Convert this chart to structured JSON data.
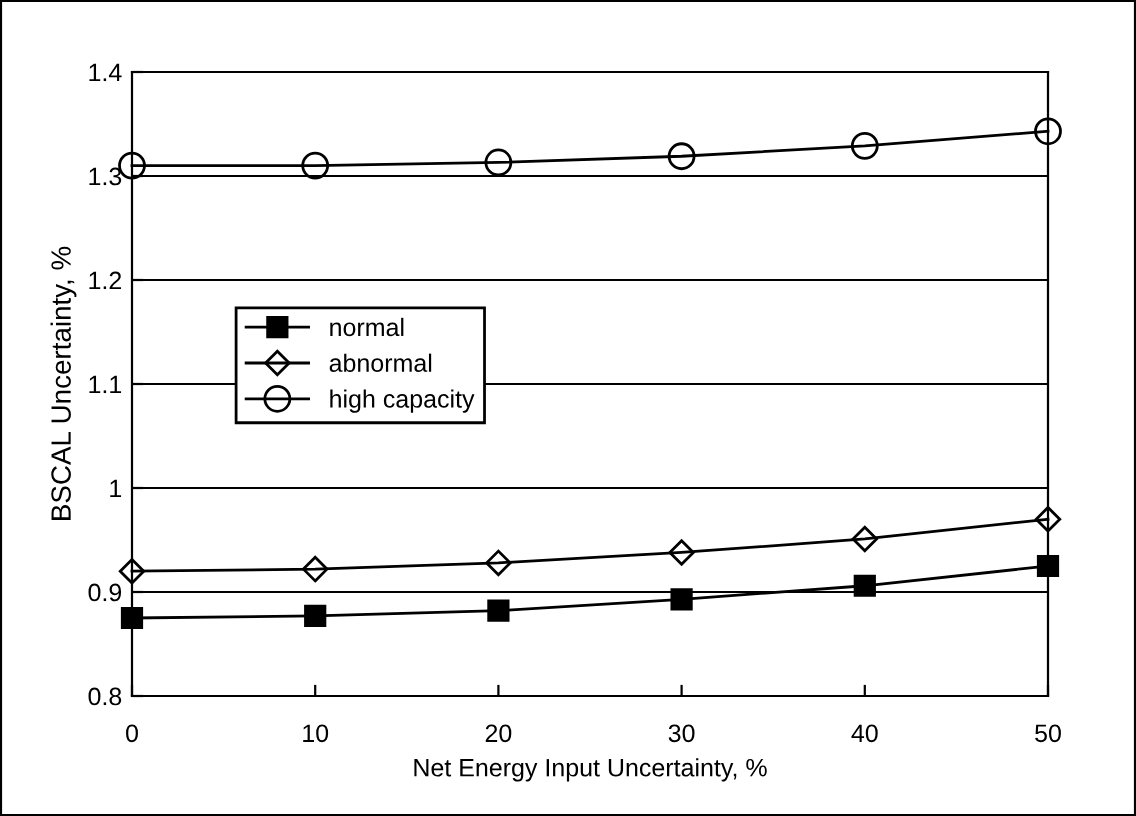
{
  "chart_data": {
    "type": "line",
    "xlabel": "Net Energy Input Uncertainty, %",
    "ylabel": "BSCAL Uncertainty, %",
    "x": [
      0,
      10,
      20,
      30,
      40,
      50
    ],
    "series": [
      {
        "name": "normal",
        "color": "#000000",
        "marker": "square",
        "values": [
          0.875,
          0.877,
          0.882,
          0.893,
          0.906,
          0.925
        ]
      },
      {
        "name": "abnormal",
        "color": "#000000",
        "marker": "diamond",
        "values": [
          0.92,
          0.922,
          0.928,
          0.938,
          0.951,
          0.97
        ]
      },
      {
        "name": "high capacity",
        "color": "#000000",
        "marker": "circle",
        "values": [
          1.31,
          1.31,
          1.313,
          1.319,
          1.329,
          1.343
        ]
      }
    ],
    "xlim": [
      0,
      50
    ],
    "xticks": [
      0,
      10,
      20,
      30,
      40,
      50
    ],
    "ylim": [
      0.8,
      1.4
    ],
    "yticks": [
      {
        "value": 0.8,
        "label": "0.8"
      },
      {
        "value": 0.9,
        "label": "0.9"
      },
      {
        "value": 1.0,
        "label": "1"
      },
      {
        "value": 1.1,
        "label": "1.1"
      },
      {
        "value": 1.2,
        "label": "1.2"
      },
      {
        "value": 1.3,
        "label": "1.3"
      },
      {
        "value": 1.4,
        "label": "1.4"
      }
    ],
    "grid": "y",
    "legend": "center left",
    "line_style": "solid"
  }
}
